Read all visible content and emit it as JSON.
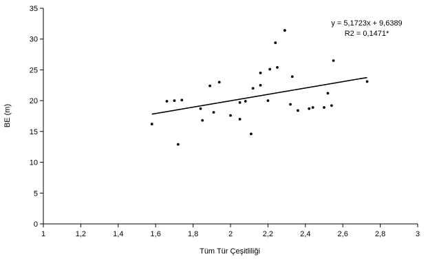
{
  "chart_data": {
    "type": "scatter",
    "title": "",
    "xlabel": "Tüm Tür Çeşitliliği",
    "ylabel": "BE (m)",
    "xlim": [
      1,
      3
    ],
    "ylim": [
      0,
      35
    ],
    "x_ticks": [
      1,
      1.2,
      1.4,
      1.6,
      1.8,
      2,
      2.2,
      2.4,
      2.6,
      2.8,
      3
    ],
    "x_tick_labels": [
      "1",
      "1,2",
      "1,4",
      "1,6",
      "1,8",
      "2",
      "2,2",
      "2,4",
      "2,6",
      "2,8",
      "3"
    ],
    "y_ticks": [
      0,
      5,
      10,
      15,
      20,
      25,
      30,
      35
    ],
    "y_tick_labels": [
      "0",
      "5",
      "10",
      "15",
      "20",
      "25",
      "30",
      "35"
    ],
    "grid": false,
    "points": [
      {
        "x": 1.58,
        "y": 16.2
      },
      {
        "x": 1.66,
        "y": 19.9
      },
      {
        "x": 1.7,
        "y": 20.0
      },
      {
        "x": 1.72,
        "y": 12.9
      },
      {
        "x": 1.74,
        "y": 20.1
      },
      {
        "x": 1.84,
        "y": 18.7
      },
      {
        "x": 1.85,
        "y": 16.8
      },
      {
        "x": 1.89,
        "y": 22.4
      },
      {
        "x": 1.91,
        "y": 18.1
      },
      {
        "x": 1.94,
        "y": 23.0
      },
      {
        "x": 2.0,
        "y": 17.6
      },
      {
        "x": 2.05,
        "y": 19.7
      },
      {
        "x": 2.05,
        "y": 17.0
      },
      {
        "x": 2.08,
        "y": 19.9
      },
      {
        "x": 2.11,
        "y": 14.6
      },
      {
        "x": 2.12,
        "y": 22.0
      },
      {
        "x": 2.16,
        "y": 22.5
      },
      {
        "x": 2.16,
        "y": 24.5
      },
      {
        "x": 2.2,
        "y": 20.0
      },
      {
        "x": 2.21,
        "y": 25.1
      },
      {
        "x": 2.24,
        "y": 29.4
      },
      {
        "x": 2.25,
        "y": 25.4
      },
      {
        "x": 2.29,
        "y": 31.4
      },
      {
        "x": 2.32,
        "y": 19.4
      },
      {
        "x": 2.33,
        "y": 23.9
      },
      {
        "x": 2.36,
        "y": 18.4
      },
      {
        "x": 2.42,
        "y": 18.7
      },
      {
        "x": 2.44,
        "y": 18.9
      },
      {
        "x": 2.5,
        "y": 18.9
      },
      {
        "x": 2.52,
        "y": 21.2
      },
      {
        "x": 2.54,
        "y": 19.2
      },
      {
        "x": 2.55,
        "y": 26.5
      },
      {
        "x": 2.73,
        "y": 23.1
      }
    ],
    "trendline": {
      "slope": 5.1723,
      "intercept": 9.6389,
      "x_range": [
        1.58,
        2.73
      ]
    },
    "annotations": {
      "equation": "y = 5,1723x + 9,6389",
      "r2": "R2 = 0,1471*"
    },
    "colors": {
      "points": "#000000",
      "line": "#000000",
      "axis": "#000000"
    }
  }
}
